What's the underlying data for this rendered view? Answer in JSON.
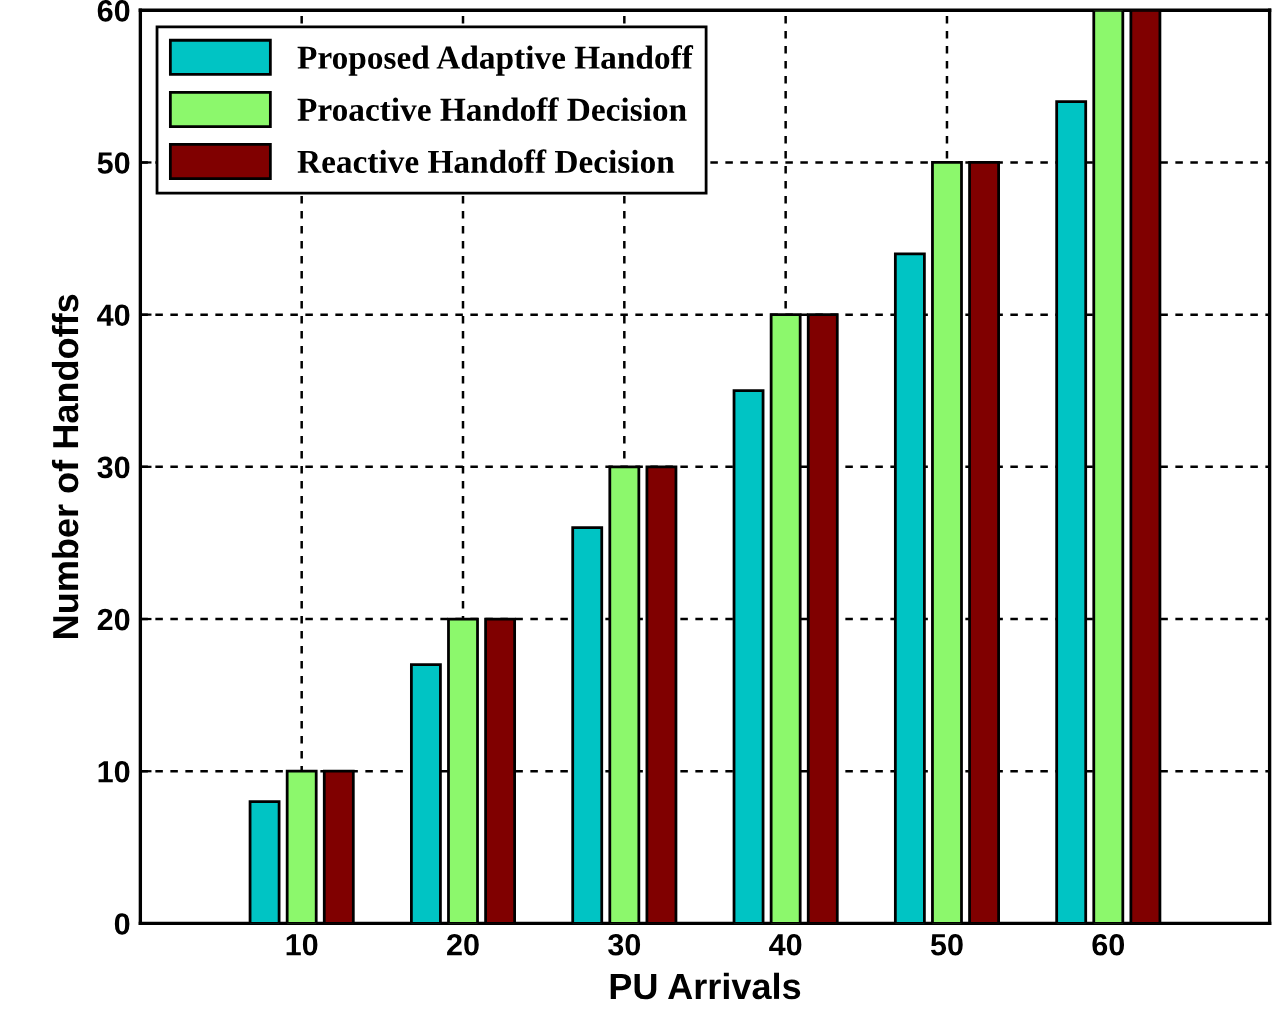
{
  "chart_data": {
    "type": "bar",
    "xlabel": "PU Arrivals",
    "ylabel": "Number of Handoffs",
    "categories": [
      "10",
      "20",
      "30",
      "40",
      "50",
      "60"
    ],
    "series": [
      {
        "name": "Proposed Adaptive Handoff",
        "color": "#00c4c4",
        "values": [
          8,
          17,
          26,
          35,
          44,
          54
        ]
      },
      {
        "name": "Proactive Handoff Decision",
        "color": "#8cf86c",
        "values": [
          10,
          20,
          30,
          40,
          50,
          60
        ]
      },
      {
        "name": "Reactive Handoff Decision",
        "color": "#800000",
        "values": [
          10,
          20,
          30,
          40,
          50,
          60
        ]
      }
    ],
    "ylim": [
      0,
      60
    ],
    "yticks": [
      0,
      10,
      20,
      30,
      40,
      50,
      60
    ],
    "grid": true,
    "legend": "top left"
  }
}
